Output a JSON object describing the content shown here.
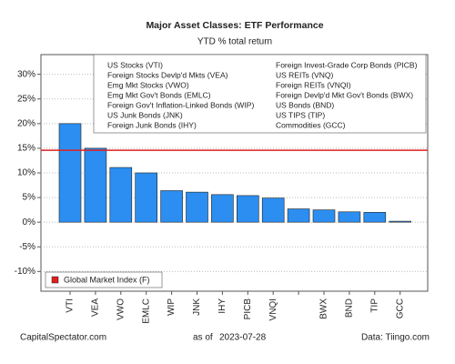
{
  "chart_data": {
    "type": "bar",
    "title": "Major Asset Classes: ETF Performance",
    "subtitle": "YTD % total return",
    "categories": [
      "VTI",
      "VEA",
      "VWO",
      "EMLC",
      "WIP",
      "JNK",
      "IHY",
      "PICB",
      "VNQI",
      null,
      "BWX",
      "BND",
      "TIP",
      "GCC"
    ],
    "values": [
      20,
      15,
      11.1,
      10,
      6.4,
      6.1,
      5.6,
      5.4,
      4.9,
      2.7,
      2.5,
      2.1,
      2.0,
      0.2
    ],
    "color": "#2b8ef0",
    "ylim": [
      -14,
      34
    ],
    "yticks": [
      {
        "value": -10,
        "label": "-10%"
      },
      {
        "value": -5,
        "label": "-5%"
      },
      {
        "value": 0,
        "label": "0%"
      },
      {
        "value": 5,
        "label": "5%"
      },
      {
        "value": 10,
        "label": "10%"
      },
      {
        "value": 15,
        "label": "15%"
      },
      {
        "value": 20,
        "label": "20%"
      },
      {
        "value": 25,
        "label": "25%"
      },
      {
        "value": 30,
        "label": "30%"
      }
    ],
    "reference_line": {
      "name": "Global Market Index (F)",
      "value": 14.6,
      "color": "#e02020"
    },
    "key": [
      "US Stocks (VTI)",
      "Foreign Stocks Devlp'd Mkts (VEA)",
      "Emg Mkt Stocks (VWO)",
      "Emg Mkt Gov't Bonds (EMLC)",
      "Foreign Gov't Inflation-Linked Bonds (WIP)",
      "US Junk Bonds (JNK)",
      "Foreign Junk Bonds (IHY)",
      "Foreign Invest-Grade Corp Bonds (PICB)",
      "US REITs (VNQ)",
      "Foreign REITs (VNQI)",
      "Foreign Devlp'd Mkt Gov't Bonds (BWX)",
      "US Bonds (BND)",
      "US TIPS (TIP)",
      "Commodities (GCC)"
    ],
    "footer": {
      "source_site": "CapitalSpectator.com",
      "as_of_label": "as of",
      "date": "2023-07-28",
      "data_source": "Data: Tiingo.com"
    }
  }
}
